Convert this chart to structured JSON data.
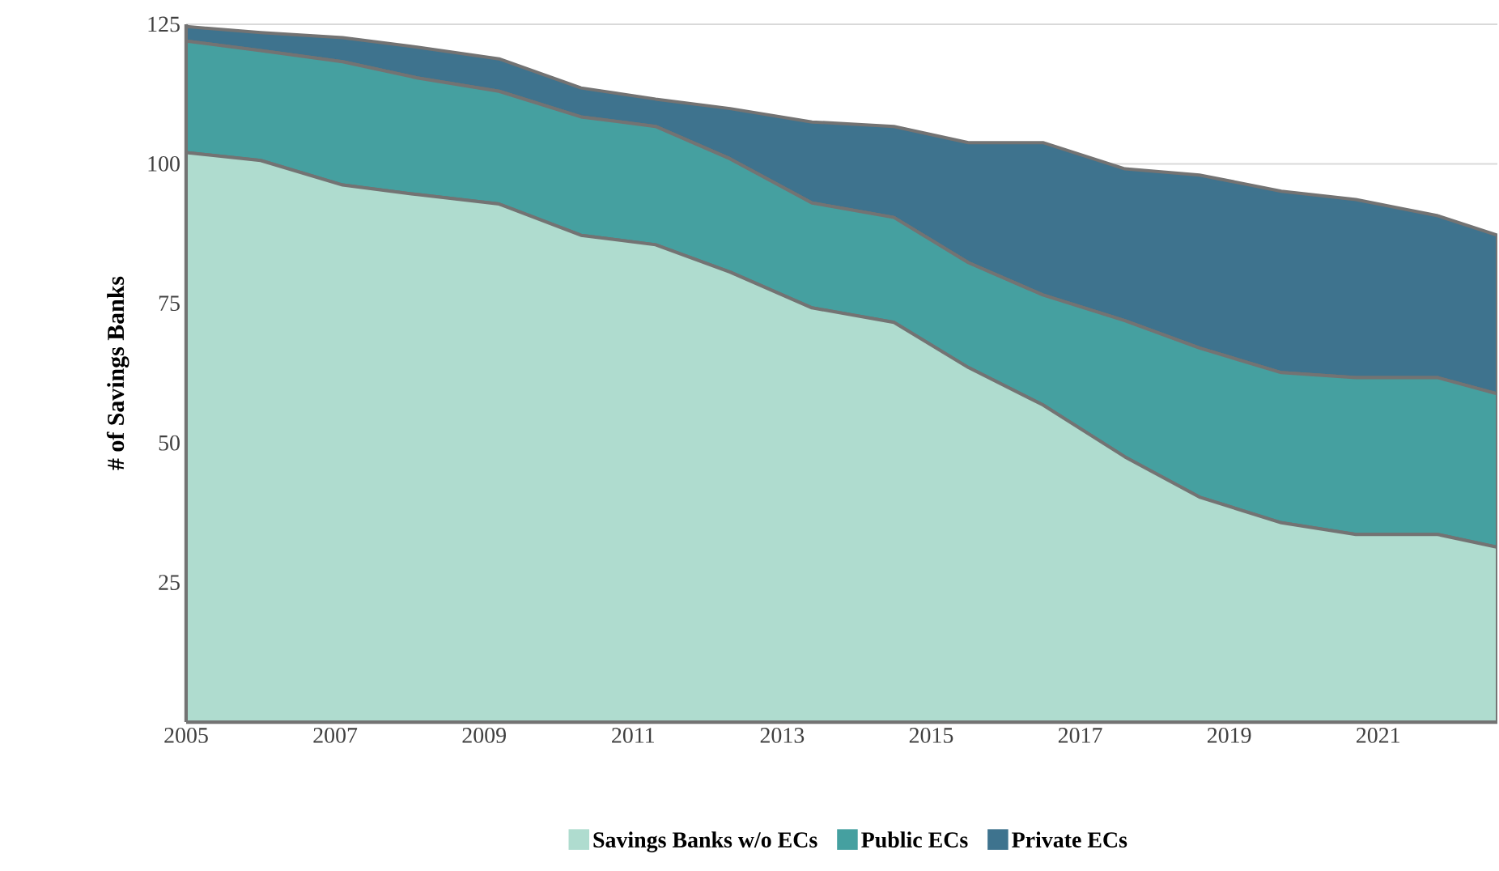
{
  "chart_data": {
    "type": "area",
    "stacked": true,
    "ylabel": "# of Savings Banks",
    "x": [
      2005,
      2006.0,
      2007.1,
      2008.1,
      2009.2,
      2010.3,
      2011.3,
      2012.3,
      2013.4,
      2014.5,
      2015.5,
      2016.5,
      2017.6,
      2018.6,
      2019.7,
      2020.7,
      2021.8,
      2022.6
    ],
    "series": [
      {
        "name": "Savings Banks w/o ECs",
        "color": "#afdccf",
        "values": [
          102.0,
          100.6,
          96.2,
          94.5,
          92.8,
          87.2,
          85.5,
          80.6,
          74.2,
          71.6,
          63.5,
          56.8,
          47.5,
          40.3,
          35.7,
          33.6,
          33.6,
          31.3
        ]
      },
      {
        "name": "Public ECs",
        "color": "#45a0a0",
        "values": [
          20.0,
          19.7,
          22.1,
          20.9,
          20.2,
          21.2,
          21.2,
          20.3,
          18.8,
          18.8,
          18.8,
          19.7,
          24.4,
          26.7,
          26.9,
          28.1,
          28.1,
          27.5
        ]
      },
      {
        "name": "Private ECs",
        "color": "#3e738e",
        "values": [
          2.6,
          3.2,
          4.3,
          5.5,
          5.8,
          5.2,
          4.9,
          9.0,
          14.5,
          16.3,
          21.5,
          27.3,
          27.2,
          31.0,
          32.5,
          31.9,
          29.0,
          28.4
        ]
      }
    ],
    "xlim": [
      2005,
      2022.6
    ],
    "xticks": [
      2005,
      2007,
      2009,
      2011,
      2013,
      2015,
      2017,
      2019,
      2021
    ],
    "ylim": [
      0,
      125
    ],
    "yticks": [
      25,
      50,
      75,
      100,
      125
    ],
    "grid": "y",
    "legend": "bottom"
  }
}
